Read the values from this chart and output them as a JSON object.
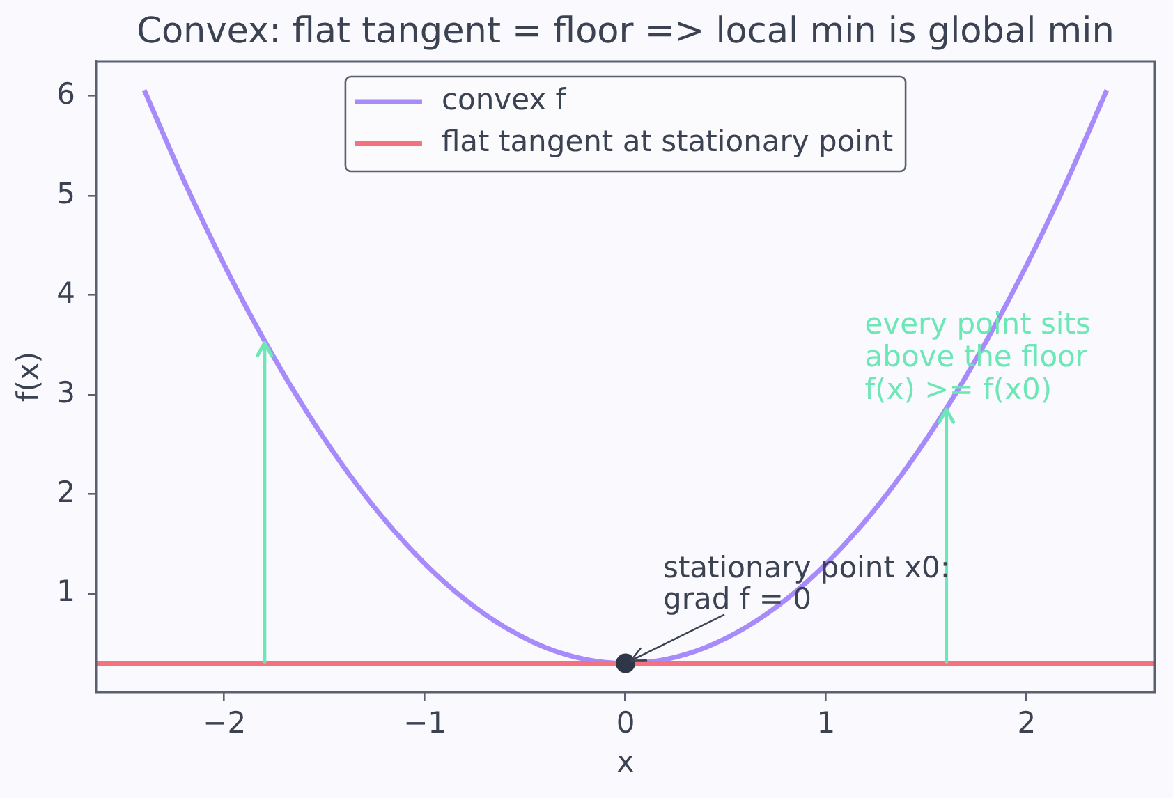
{
  "chart_data": {
    "type": "line",
    "title": "Convex: flat tangent = floor => local min is global min",
    "xlabel": "x",
    "ylabel": "f(x)",
    "series": [
      {
        "name": "convex f",
        "color": "#a78bfa",
        "x": [
          -2.4,
          -2.2,
          -2.0,
          -1.8,
          -1.6,
          -1.4,
          -1.2,
          -1.0,
          -0.8,
          -0.6,
          -0.4,
          -0.2,
          0,
          0.2,
          0.4,
          0.6,
          0.8,
          1.0,
          1.2,
          1.4,
          1.6,
          1.8,
          2.0,
          2.2,
          2.4
        ],
        "values": [
          6.06,
          5.14,
          4.3,
          3.54,
          2.86,
          2.26,
          1.74,
          1.3,
          0.94,
          0.66,
          0.46,
          0.34,
          0.3,
          0.34,
          0.46,
          0.66,
          0.94,
          1.3,
          1.74,
          2.26,
          2.86,
          3.54,
          4.3,
          5.14,
          6.06
        ]
      },
      {
        "name": "flat tangent at stationary point",
        "color": "#f4717f",
        "x": [
          -2.64,
          2.64
        ],
        "values": [
          0.3,
          0.3
        ]
      },
      {
        "type": "line",
        "color": "#6ee7b7",
        "x": [
          -1.8,
          -1.8
        ],
        "values": [
          0.3,
          3.45
        ]
      },
      {
        "type": "line",
        "color": "#6ee7b7",
        "x": [
          1.6,
          1.6
        ],
        "values": [
          0.3,
          2.78
        ]
      },
      {
        "type": "scatter",
        "color": "#2d3748",
        "marker": "circle",
        "x": [
          0
        ],
        "values": [
          0.3
        ]
      }
    ],
    "annotations": [
      {
        "text": "stationary point x0:\ngrad f = 0",
        "x": 0,
        "y": 0.3
      },
      "every point sits\nabove the floor\nf(x) >= f(x0)"
    ],
    "xlim": [
      -2.64,
      2.64
    ],
    "ylim": [
      0.01,
      6.35
    ],
    "xticks": [
      {
        "value": -2,
        "label": "−2"
      },
      {
        "value": -1,
        "label": "−1"
      },
      0,
      1,
      2
    ],
    "yticks": [
      1,
      2,
      3,
      4,
      5,
      6
    ],
    "legend": "top"
  }
}
